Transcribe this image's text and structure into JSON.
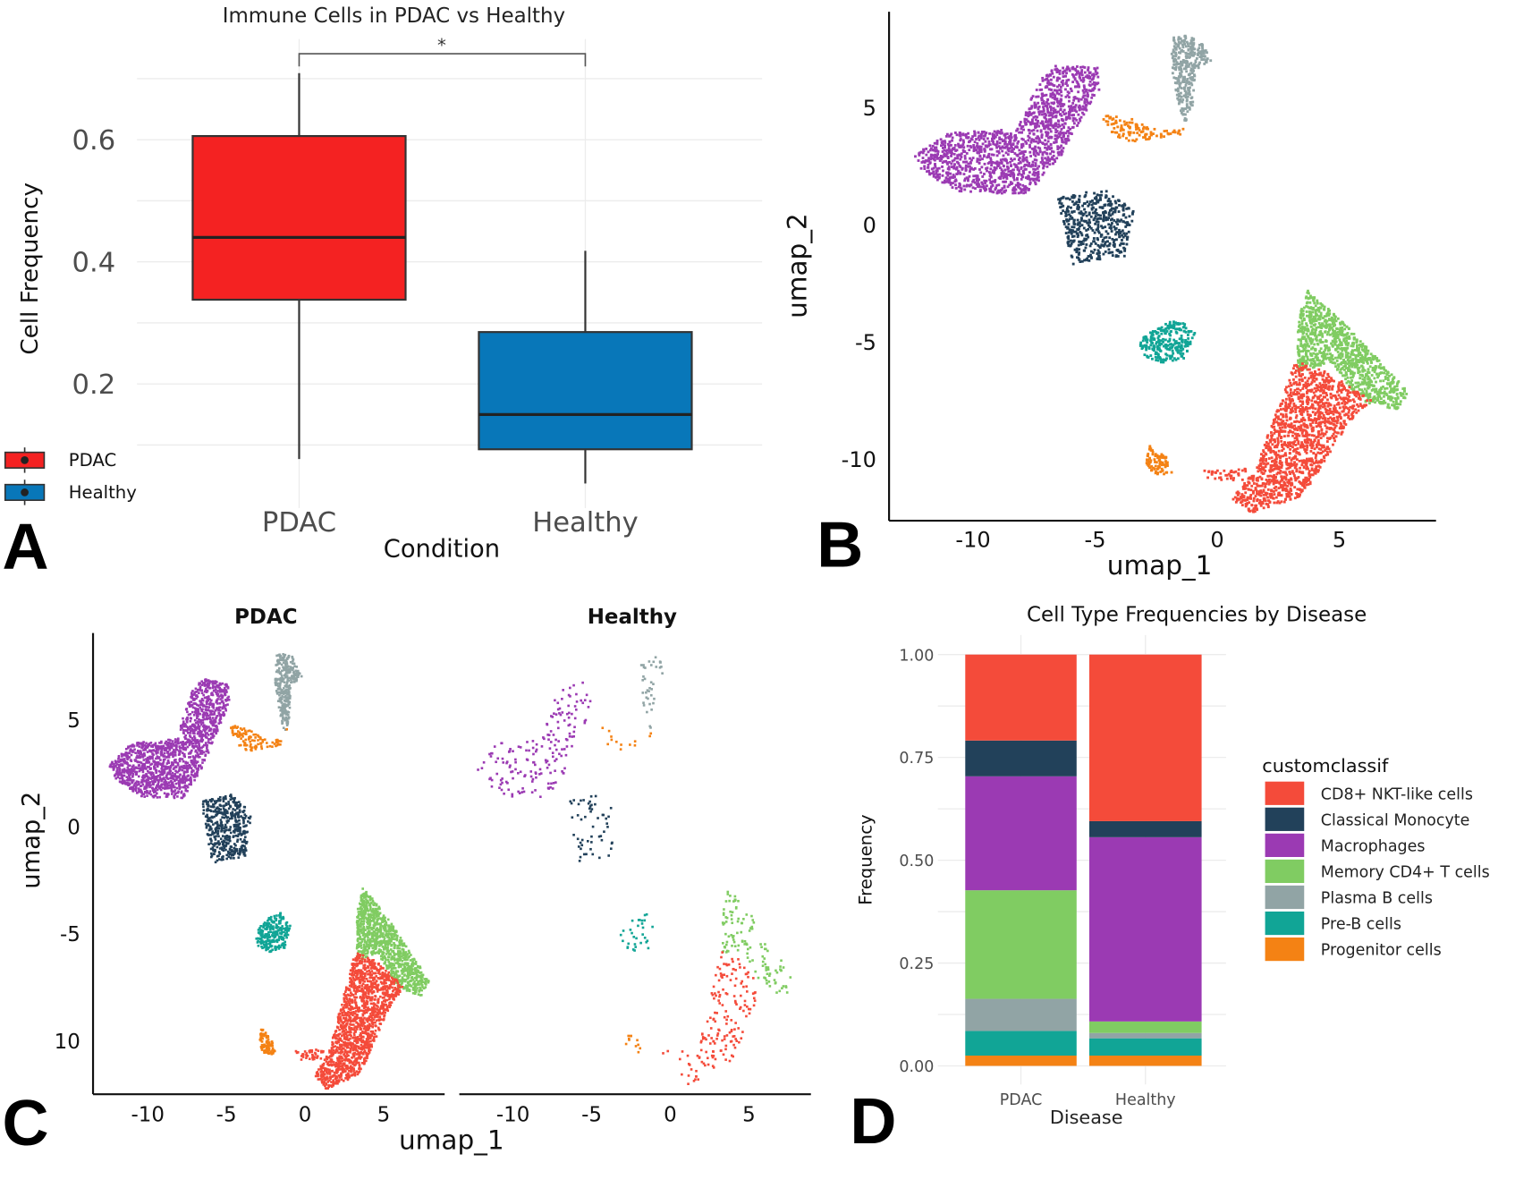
{
  "colors": {
    "CD8+ NKT-like cells": "#f44b3a",
    "Classical Monocyte": "#22415a",
    "Macrophages": "#9b3ab3",
    "Memory CD4+ T cells": "#80cc62",
    "Plasma B cells": "#91a4a5",
    "Pre-B cells": "#11a596",
    "Progenitor cells": "#f48214",
    "PDAC_box": "#f42222",
    "Healthy_box": "#0877b9"
  },
  "panel_letters": [
    "A",
    "B",
    "C",
    "D"
  ],
  "chart_data": [
    {
      "id": "A",
      "type": "box",
      "title": "Immune Cells in PDAC vs Healthy",
      "xlabel": "Condition",
      "ylabel": "Cell Frequency",
      "categories": [
        "PDAC",
        "Healthy"
      ],
      "yticks": [
        "0.2",
        "0.4",
        "0.6"
      ],
      "ytick_values": [
        0.2,
        0.4,
        0.6
      ],
      "ylim": [
        0.02,
        0.78
      ],
      "boxes": [
        {
          "name": "PDAC",
          "min": 0.077,
          "q1": 0.338,
          "median": 0.44,
          "q3": 0.606,
          "max": 0.709
        },
        {
          "name": "Healthy",
          "min": 0.037,
          "q1": 0.093,
          "median": 0.15,
          "q3": 0.285,
          "max": 0.418
        }
      ],
      "significance": {
        "between": [
          "PDAC",
          "Healthy"
        ],
        "label": "*"
      },
      "legend": {
        "entries": [
          "PDAC",
          "Healthy"
        ],
        "placement": "bottom-left"
      }
    },
    {
      "id": "B",
      "type": "scatter",
      "xlabel": "umap_1",
      "ylabel": "umap_2",
      "xticks": [
        -10,
        -5,
        0,
        5
      ],
      "yticks": [
        5,
        0,
        -5,
        -10
      ],
      "xlim": [
        -13.4,
        9.0
      ],
      "ylim": [
        -12.6,
        9.1
      ],
      "clusters": [
        {
          "name": "Macrophages",
          "points": 1500,
          "region": [
            [
              -12.5,
              2.9
            ],
            [
              -11,
              3.9
            ],
            [
              -8.2,
              4.1
            ],
            [
              -7.2,
              6.3
            ],
            [
              -6.5,
              6.9
            ],
            [
              -4.9,
              6.7
            ],
            [
              -4.8,
              5.8
            ],
            [
              -5.6,
              4.4
            ],
            [
              -6.6,
              2.6
            ],
            [
              -7.8,
              1.3
            ],
            [
              -10.5,
              1.4
            ],
            [
              -12,
              2.2
            ]
          ]
        },
        {
          "name": "Classical Monocyte",
          "points": 450,
          "region": [
            [
              -6.6,
              1.2
            ],
            [
              -4.6,
              1.5
            ],
            [
              -3.4,
              0.6
            ],
            [
              -3.8,
              -1.4
            ],
            [
              -5.9,
              -1.7
            ]
          ]
        },
        {
          "name": "Plasma B cells",
          "points": 320,
          "region": [
            [
              -1.8,
              8.1
            ],
            [
              -0.8,
              8.0
            ],
            [
              -0.2,
              7.0
            ],
            [
              -0.9,
              6.6
            ],
            [
              -1.0,
              5.0
            ],
            [
              -1.3,
              4.3
            ],
            [
              -1.6,
              5.2
            ],
            [
              -1.9,
              6.8
            ]
          ]
        },
        {
          "name": "Progenitor cells",
          "points": 110,
          "region": [
            [
              -4.8,
              4.8
            ],
            [
              -3.5,
              4.5
            ],
            [
              -2.4,
              4.0
            ],
            [
              -1.3,
              4.1
            ],
            [
              -1.0,
              4.9
            ],
            [
              -1.5,
              3.8
            ],
            [
              -3.6,
              3.5
            ],
            [
              -4.4,
              3.9
            ]
          ]
        },
        {
          "name": "Progenitor cells",
          "points": 90,
          "region": [
            [
              -2.8,
              -9.4
            ],
            [
              -2.1,
              -9.9
            ],
            [
              -1.8,
              -10.6
            ],
            [
              -2.6,
              -10.7
            ],
            [
              -2.9,
              -10.2
            ]
          ]
        },
        {
          "name": "Pre-B cells",
          "points": 260,
          "region": [
            [
              -3.2,
              -5.0
            ],
            [
              -2.6,
              -4.4
            ],
            [
              -1.6,
              -4.0
            ],
            [
              -0.9,
              -4.6
            ],
            [
              -1.3,
              -5.7
            ],
            [
              -2.3,
              -5.9
            ],
            [
              -3.0,
              -5.6
            ]
          ]
        },
        {
          "name": "Memory CD4+ T cells",
          "points": 1000,
          "region": [
            [
              3.7,
              -2.8
            ],
            [
              5.2,
              -4.2
            ],
            [
              7.9,
              -7.2
            ],
            [
              7.4,
              -7.9
            ],
            [
              6.0,
              -7.6
            ],
            [
              4.6,
              -5.9
            ],
            [
              3.3,
              -6.3
            ],
            [
              3.3,
              -4.0
            ]
          ]
        },
        {
          "name": "CD8+ NKT-like cells",
          "points": 1400,
          "region": [
            [
              3.2,
              -5.8
            ],
            [
              4.6,
              -6.3
            ],
            [
              6.3,
              -7.5
            ],
            [
              5.4,
              -8.4
            ],
            [
              4.0,
              -10.8
            ],
            [
              3.4,
              -11.6
            ],
            [
              1.4,
              -12.3
            ],
            [
              0.6,
              -11.7
            ],
            [
              1.6,
              -10.4
            ],
            [
              2.2,
              -8.6
            ],
            [
              2.8,
              -7.0
            ]
          ]
        },
        {
          "name": "CD8+ NKT-like cells",
          "points": 40,
          "region": [
            [
              -0.6,
              -10.5
            ],
            [
              1.2,
              -10.4
            ],
            [
              1.2,
              -10.9
            ],
            [
              -0.4,
              -10.9
            ]
          ]
        }
      ]
    },
    {
      "id": "C",
      "type": "scatter",
      "facets": [
        "PDAC",
        "Healthy"
      ],
      "xlabel": "umap_1",
      "ylabel": "umap_2",
      "xticks": [
        -10,
        -5,
        0,
        5
      ],
      "yticks": [
        5,
        0,
        -5,
        10
      ],
      "xlim": [
        -13.6,
        8.9
      ],
      "ylim": [
        -12.6,
        9.0
      ],
      "facet_density": {
        "PDAC": 1.0,
        "Healthy": 0.12
      }
    },
    {
      "id": "D",
      "type": "stacked_bar",
      "title": "Cell Type Frequencies by Disease",
      "xlabel": "Disease",
      "ylabel": "Frequency",
      "categories": [
        "PDAC",
        "Healthy"
      ],
      "yticks": [
        "0.00",
        "0.25",
        "0.50",
        "0.75",
        "1.00"
      ],
      "ytick_values": [
        0,
        0.25,
        0.5,
        0.75,
        1.0
      ],
      "ylim": [
        0,
        1
      ],
      "legend_title": "customclassif",
      "legend_placement": "right",
      "series": [
        {
          "name": "CD8+ NKT-like cells",
          "values": [
            0.209,
            0.405
          ]
        },
        {
          "name": "Classical Monocyte",
          "values": [
            0.087,
            0.039
          ]
        },
        {
          "name": "Macrophages",
          "values": [
            0.277,
            0.448
          ]
        },
        {
          "name": "Memory CD4+ T cells",
          "values": [
            0.264,
            0.028
          ]
        },
        {
          "name": "Plasma B cells",
          "values": [
            0.078,
            0.013
          ]
        },
        {
          "name": "Pre-B cells",
          "values": [
            0.06,
            0.042
          ]
        },
        {
          "name": "Progenitor cells",
          "values": [
            0.025,
            0.025
          ]
        }
      ]
    }
  ]
}
